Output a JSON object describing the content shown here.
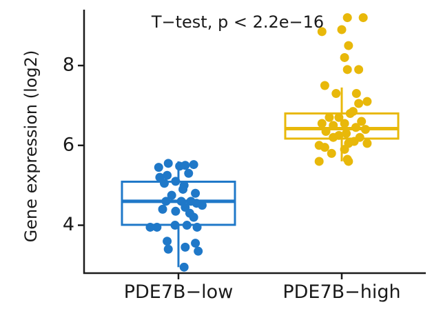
{
  "chart_data": {
    "type": "box",
    "annotation": "T−test, p < 2.2e−16",
    "xlabel": "",
    "ylabel": "Gene expression (log2)",
    "categories": [
      "PDE7B−low",
      "PDE7B−high"
    ],
    "ylim": [
      2.8,
      9.4
    ],
    "yticks": [
      4,
      6,
      8
    ],
    "ytick_labels": [
      "4",
      "6",
      "8"
    ],
    "grid": false,
    "legend": "none",
    "colors": [
      "#1f78c8",
      "#e8b80a"
    ],
    "boxes": [
      {
        "q1": 4.01,
        "median": 4.6,
        "q3": 5.09,
        "whisker_low": 2.95,
        "whisker_high": 5.6
      },
      {
        "q1": 6.17,
        "median": 6.42,
        "q3": 6.8,
        "whisker_low": 5.6,
        "whisker_high": 7.45
      }
    ],
    "points": [
      [
        [
          -0.35,
          5.45
        ],
        [
          -0.18,
          5.55
        ],
        [
          0.02,
          5.48
        ],
        [
          0.12,
          5.5
        ],
        [
          0.27,
          5.52
        ],
        [
          -0.33,
          5.2
        ],
        [
          0.18,
          5.3
        ],
        [
          -0.2,
          5.25
        ],
        [
          -0.05,
          5.1
        ],
        [
          0.1,
          5.0
        ],
        [
          -0.25,
          5.05
        ],
        [
          0.08,
          4.9
        ],
        [
          0.3,
          4.8
        ],
        [
          -0.12,
          4.75
        ],
        [
          0.22,
          4.6
        ],
        [
          0.32,
          4.55
        ],
        [
          -0.22,
          4.6
        ],
        [
          0.05,
          4.6
        ],
        [
          -0.05,
          4.35
        ],
        [
          0.12,
          4.45
        ],
        [
          0.2,
          4.3
        ],
        [
          -0.28,
          4.4
        ],
        [
          0.42,
          4.5
        ],
        [
          0.27,
          4.2
        ],
        [
          0.15,
          4.0
        ],
        [
          -0.06,
          4.0
        ],
        [
          0.33,
          3.95
        ],
        [
          -0.38,
          3.95
        ],
        [
          -0.5,
          3.95
        ],
        [
          0.3,
          3.55
        ],
        [
          -0.2,
          3.6
        ],
        [
          0.12,
          3.45
        ],
        [
          0.35,
          3.35
        ],
        [
          -0.18,
          3.4
        ],
        [
          0.1,
          2.95
        ]
      ],
      [
        [
          0.38,
          9.2
        ],
        [
          0.1,
          9.2
        ],
        [
          0.0,
          8.9
        ],
        [
          -0.35,
          8.85
        ],
        [
          0.12,
          8.5
        ],
        [
          0.05,
          8.2
        ],
        [
          0.3,
          7.9
        ],
        [
          0.1,
          7.9
        ],
        [
          -0.3,
          7.5
        ],
        [
          -0.1,
          7.3
        ],
        [
          0.26,
          7.3
        ],
        [
          0.45,
          7.1
        ],
        [
          0.3,
          7.05
        ],
        [
          0.2,
          6.85
        ],
        [
          -0.22,
          6.7
        ],
        [
          0.15,
          6.8
        ],
        [
          -0.05,
          6.7
        ],
        [
          0.35,
          6.6
        ],
        [
          -0.35,
          6.55
        ],
        [
          -0.15,
          6.5
        ],
        [
          0.05,
          6.55
        ],
        [
          0.25,
          6.45
        ],
        [
          0.42,
          6.4
        ],
        [
          -0.28,
          6.35
        ],
        [
          0.08,
          6.3
        ],
        [
          -0.05,
          6.25
        ],
        [
          0.32,
          6.2
        ],
        [
          -0.15,
          6.2
        ],
        [
          0.22,
          6.1
        ],
        [
          0.45,
          6.05
        ],
        [
          -0.4,
          6.0
        ],
        [
          0.12,
          6.05
        ],
        [
          -0.3,
          5.95
        ],
        [
          0.05,
          5.9
        ],
        [
          -0.18,
          5.8
        ],
        [
          0.1,
          5.65
        ],
        [
          -0.4,
          5.6
        ],
        [
          0.12,
          5.6
        ]
      ]
    ]
  }
}
